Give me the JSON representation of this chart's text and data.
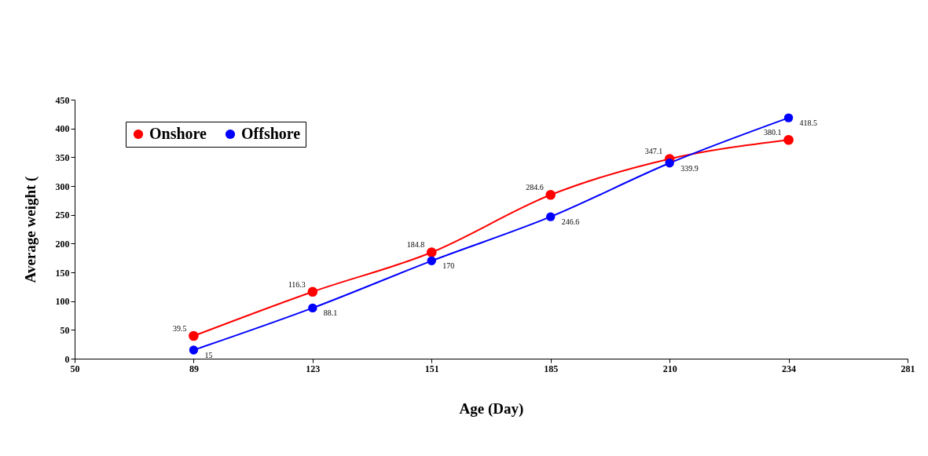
{
  "chart_data": {
    "type": "line",
    "xlabel": "Age (Day)",
    "ylabel": "Average weight (",
    "categories": [
      "50",
      "89",
      "123",
      "151",
      "185",
      "210",
      "234",
      "281"
    ],
    "series": [
      {
        "name": "Onshore",
        "color": "#ff0000",
        "values": [
          null,
          39.5,
          116.3,
          184.8,
          284.6,
          347.1,
          380.1,
          null
        ]
      },
      {
        "name": "Offshore",
        "color": "#0000ff",
        "values": [
          null,
          15,
          88.1,
          170,
          246.6,
          339.9,
          418.5,
          null
        ]
      }
    ],
    "ylim": [
      0,
      450
    ],
    "yticks": [
      0,
      50,
      100,
      150,
      200,
      250,
      300,
      350,
      400,
      450
    ],
    "grid": false,
    "legend": "top left",
    "marker": "circle",
    "line_style": "solid",
    "data_labels": true
  }
}
